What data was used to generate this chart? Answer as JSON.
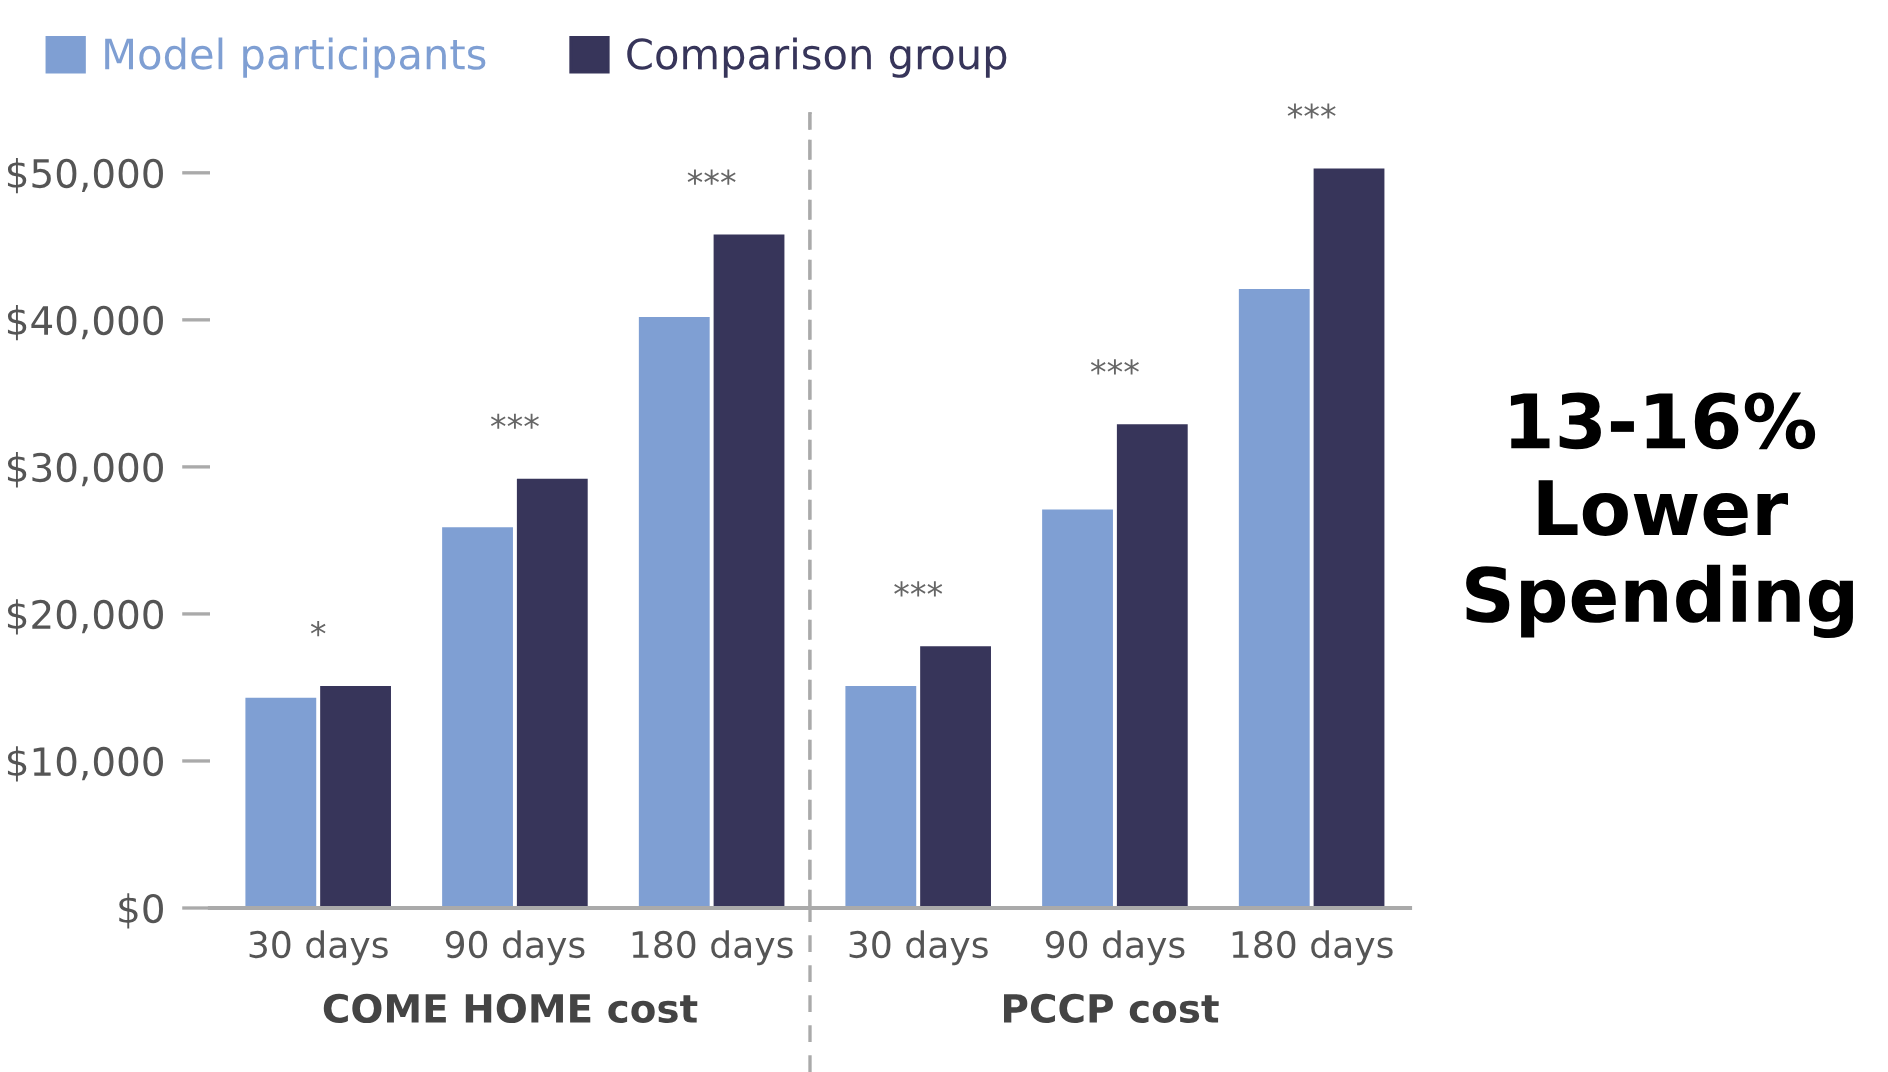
{
  "chart_data": [
    {
      "type": "bar",
      "xlabel": "COME HOME cost",
      "categories": [
        "30 days",
        "90 days",
        "180 days"
      ],
      "series": [
        {
          "name": "Model participants",
          "color": "#7f9fd3",
          "values": [
            14300,
            25900,
            40200
          ]
        },
        {
          "name": "Comparison group",
          "color": "#37355a",
          "values": [
            15100,
            29200,
            45800
          ]
        }
      ],
      "ylim": [
        0,
        54000
      ],
      "yticks": [
        {
          "value": 0,
          "label": "$0"
        },
        {
          "value": 10000,
          "label": "$10,000"
        },
        {
          "value": 20000,
          "label": "$20,000"
        },
        {
          "value": 30000,
          "label": "$30,000"
        },
        {
          "value": 40000,
          "label": "$40,000"
        },
        {
          "value": 50000,
          "label": "$50,000"
        }
      ],
      "annotations": [
        "*",
        "***",
        "***"
      ],
      "legend": "top left",
      "grid": false
    },
    {
      "type": "bar",
      "xlabel": "PCCP cost",
      "categories": [
        "30 days",
        "90 days",
        "180 days"
      ],
      "series": [
        {
          "color": "#7f9fd3",
          "values": [
            15100,
            27100,
            42100
          ]
        },
        {
          "color": "#37355a",
          "values": [
            17800,
            32900,
            50300
          ]
        }
      ],
      "ylim": [
        0,
        54000
      ],
      "tick_labels": "x",
      "annotations": [
        "***",
        "***",
        "***",
        "13-16%\nLower\nSpending"
      ],
      "legend": false,
      "grid": false
    }
  ]
}
